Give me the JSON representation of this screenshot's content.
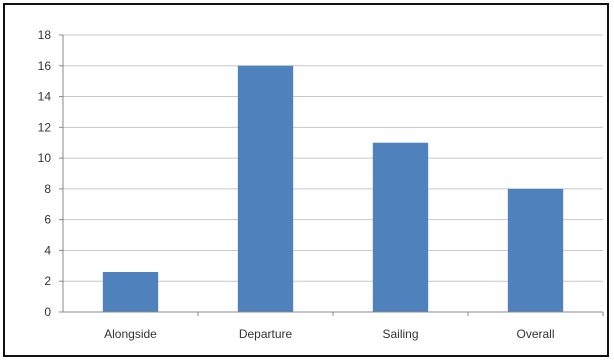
{
  "chart_data": {
    "type": "bar",
    "categories": [
      "Alongside",
      "Departure",
      "Sailing",
      "Overall"
    ],
    "values": [
      2.6,
      16,
      11,
      8
    ],
    "title": "",
    "xlabel": "",
    "ylabel": "",
    "ylim": [
      0,
      18
    ],
    "yticks": [
      0,
      2,
      4,
      6,
      8,
      10,
      12,
      14,
      16,
      18
    ],
    "grid": true,
    "legend": "none",
    "bar_color": "#4f81bd",
    "grid_color": "#c8c8c8"
  }
}
